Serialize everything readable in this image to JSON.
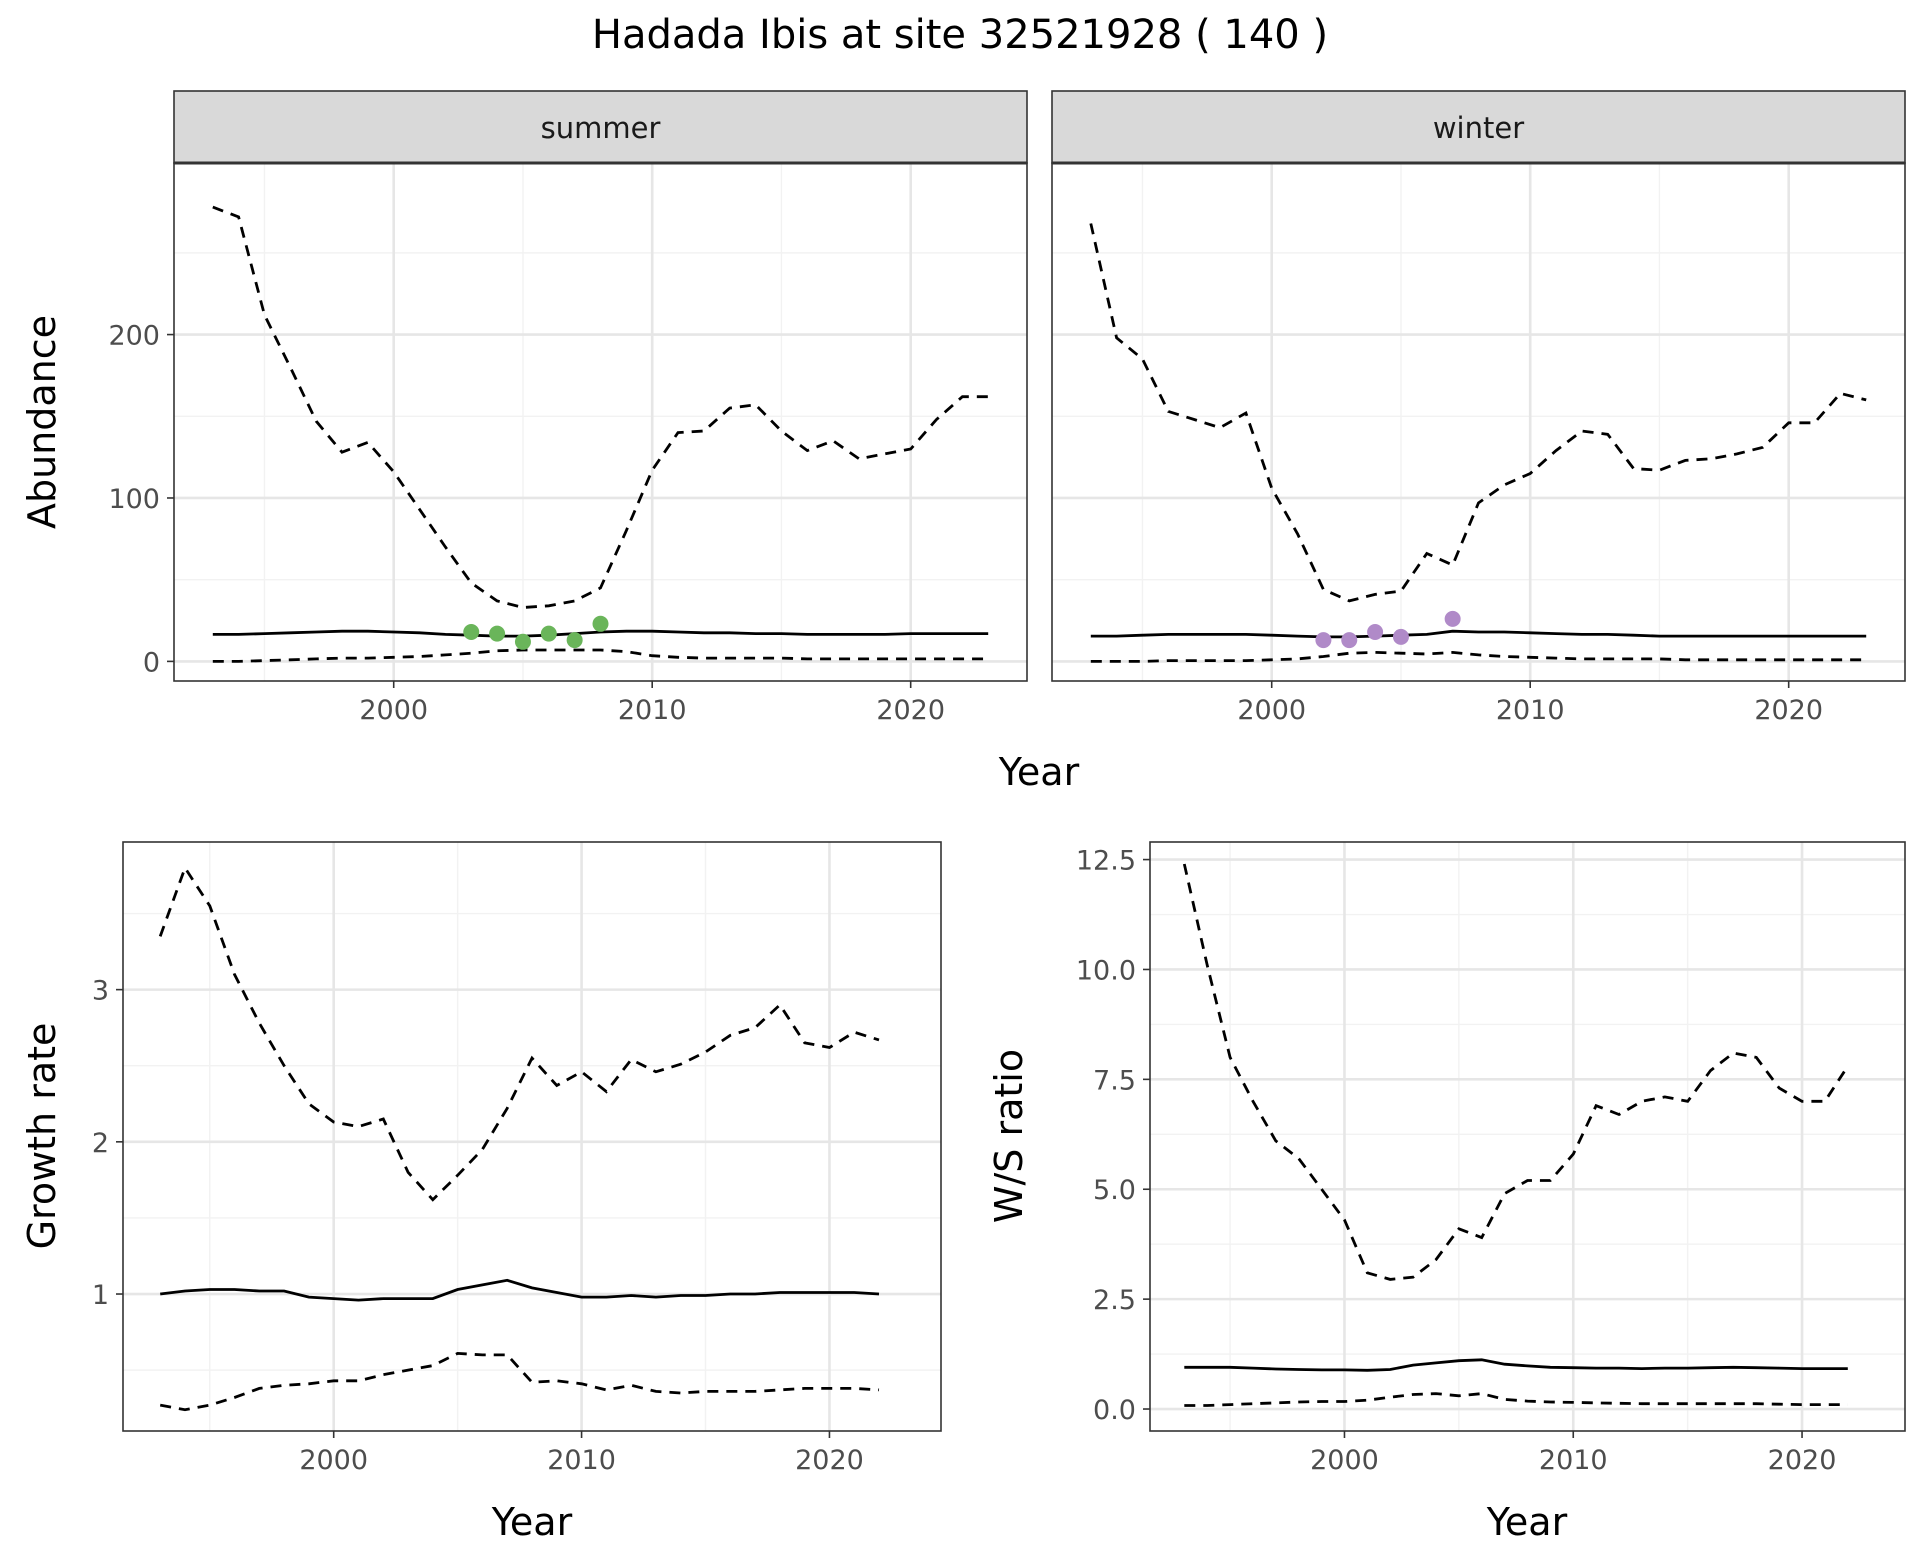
{
  "title": "Hadada Ibis at site 32521928 ( 140 )",
  "colors": {
    "summer_points": "#6ab55a",
    "winter_points": "#b08ac8",
    "line": "#000000",
    "grid_major": "#e6e6e6",
    "grid_minor": "#f2f2f2",
    "strip_fill": "#d9d9d9"
  },
  "chart_data": [
    {
      "id": "abundance",
      "type": "line",
      "ylabel": "Abundance",
      "xlabel": "Year",
      "xlim": [
        1991.5,
        2024.5
      ],
      "ylim": [
        -12,
        305
      ],
      "x_ticks": [
        2000,
        2010,
        2020
      ],
      "y_ticks": [
        0,
        100,
        200
      ],
      "panels": [
        {
          "strip": "summer",
          "x": [
            1993,
            1994,
            1995,
            1996,
            1997,
            1998,
            1999,
            2000,
            2001,
            2002,
            2003,
            2004,
            2005,
            2006,
            2007,
            2008,
            2009,
            2010,
            2011,
            2012,
            2013,
            2014,
            2015,
            2016,
            2017,
            2018,
            2019,
            2020,
            2021,
            2022,
            2023
          ],
          "series": [
            {
              "style": "dashed",
              "values": [
                278,
                272,
                212,
                180,
                147,
                128,
                134,
                116,
                93,
                70,
                48,
                37,
                33,
                34,
                37,
                45,
                80,
                117,
                140,
                141,
                155,
                157,
                141,
                129,
                135,
                124,
                127,
                130,
                148,
                162,
                162
              ]
            },
            {
              "style": "solid",
              "values": [
                16.5,
                16.5,
                17,
                17.5,
                18,
                18.5,
                18.5,
                18,
                17.5,
                16.5,
                16,
                15.5,
                15.5,
                16,
                17,
                18,
                18.5,
                18.5,
                18,
                17.5,
                17.5,
                17,
                17,
                16.5,
                16.5,
                16.5,
                16.5,
                17,
                17,
                17,
                17
              ]
            },
            {
              "style": "dashed",
              "values": [
                0,
                0,
                0.5,
                1,
                1.5,
                2,
                2,
                2.5,
                3,
                4,
                5,
                6.5,
                7,
                7,
                7,
                7,
                6,
                3.5,
                2.5,
                2,
                2,
                2,
                2,
                1.5,
                1.5,
                1.5,
                1.5,
                1.5,
                1.5,
                1.5,
                1.5
              ]
            }
          ],
          "points": {
            "x": [
              2003,
              2004,
              2005,
              2006,
              2007,
              2008
            ],
            "y": [
              18,
              17,
              12,
              17,
              13,
              23
            ]
          }
        },
        {
          "strip": "winter",
          "x": [
            1993,
            1994,
            1995,
            1996,
            1997,
            1998,
            1999,
            2000,
            2001,
            2002,
            2003,
            2004,
            2005,
            2006,
            2007,
            2008,
            2009,
            2010,
            2011,
            2012,
            2013,
            2014,
            2015,
            2016,
            2017,
            2018,
            2019,
            2020,
            2021,
            2022,
            2023
          ],
          "series": [
            {
              "style": "dashed",
              "values": [
                268,
                198,
                185,
                153,
                148,
                143,
                152,
                106,
                78,
                44,
                37,
                41,
                43,
                66,
                59,
                97,
                108,
                115,
                129,
                141,
                139,
                118,
                117,
                123,
                124,
                127,
                131,
                146,
                146,
                164,
                160
              ]
            },
            {
              "style": "solid",
              "values": [
                15.5,
                15.5,
                16,
                16.5,
                16.5,
                16.5,
                16.5,
                16,
                15.5,
                15,
                15,
                15.5,
                16,
                16.5,
                18.5,
                18,
                18,
                17.5,
                17,
                16.5,
                16.5,
                16,
                15.5,
                15.5,
                15.5,
                15.5,
                15.5,
                15.5,
                15.5,
                15.5,
                15.5
              ]
            },
            {
              "style": "dashed",
              "values": [
                0,
                0,
                0,
                0.5,
                0.5,
                0.5,
                0.5,
                1,
                1.5,
                3,
                5,
                5.5,
                5,
                4.5,
                5.5,
                4,
                3,
                2.5,
                2,
                1.5,
                1.5,
                1.5,
                1.5,
                1,
                1,
                1,
                1,
                1,
                1,
                1,
                1
              ]
            }
          ],
          "points": {
            "x": [
              2002,
              2003,
              2004,
              2005,
              2007
            ],
            "y": [
              13,
              13,
              18,
              15,
              26
            ]
          }
        }
      ]
    },
    {
      "id": "growth",
      "type": "line",
      "ylabel": "Growth rate",
      "xlabel": "Year",
      "xlim": [
        1991.5,
        2024.5
      ],
      "ylim": [
        0.1,
        3.97
      ],
      "x_ticks": [
        2000,
        2010,
        2020
      ],
      "y_ticks": [
        1,
        2,
        3
      ],
      "x": [
        1993,
        1994,
        1995,
        1996,
        1997,
        1998,
        1999,
        2000,
        2001,
        2002,
        2003,
        2004,
        2005,
        2006,
        2007,
        2008,
        2009,
        2010,
        2011,
        2012,
        2013,
        2014,
        2015,
        2016,
        2017,
        2018,
        2019,
        2020,
        2021,
        2022
      ],
      "series": [
        {
          "style": "dashed",
          "values": [
            3.35,
            3.8,
            3.55,
            3.1,
            2.78,
            2.5,
            2.25,
            2.13,
            2.1,
            2.15,
            1.8,
            1.62,
            1.78,
            1.95,
            2.22,
            2.55,
            2.37,
            2.46,
            2.33,
            2.54,
            2.46,
            2.51,
            2.59,
            2.7,
            2.75,
            2.9,
            2.65,
            2.62,
            2.72,
            2.67
          ]
        },
        {
          "style": "solid",
          "values": [
            1.0,
            1.02,
            1.03,
            1.03,
            1.02,
            1.02,
            0.98,
            0.97,
            0.96,
            0.97,
            0.97,
            0.97,
            1.03,
            1.06,
            1.09,
            1.04,
            1.01,
            0.98,
            0.98,
            0.99,
            0.98,
            0.99,
            0.99,
            1.0,
            1.0,
            1.01,
            1.01,
            1.01,
            1.01,
            1.0
          ]
        },
        {
          "style": "dashed",
          "values": [
            0.27,
            0.24,
            0.27,
            0.32,
            0.38,
            0.4,
            0.41,
            0.43,
            0.43,
            0.47,
            0.5,
            0.53,
            0.61,
            0.6,
            0.6,
            0.42,
            0.43,
            0.41,
            0.37,
            0.4,
            0.36,
            0.35,
            0.36,
            0.36,
            0.36,
            0.37,
            0.38,
            0.38,
            0.38,
            0.37
          ]
        }
      ]
    },
    {
      "id": "ws_ratio",
      "type": "line",
      "ylabel": "W/S ratio",
      "xlabel": "Year",
      "xlim": [
        1991.5,
        2024.5
      ],
      "ylim": [
        -0.5,
        12.9
      ],
      "x_ticks": [
        2000,
        2010,
        2020
      ],
      "y_ticks": [
        "0.0",
        "2.5",
        "5.0",
        "7.5",
        "10.0",
        "12.5"
      ],
      "x": [
        1993,
        1994,
        1995,
        1996,
        1997,
        1998,
        1999,
        2000,
        2001,
        2002,
        2003,
        2004,
        2005,
        2006,
        2007,
        2008,
        2009,
        2010,
        2011,
        2012,
        2013,
        2014,
        2015,
        2016,
        2017,
        2018,
        2019,
        2020,
        2021,
        2022
      ],
      "series": [
        {
          "style": "dashed",
          "values": [
            12.4,
            10.1,
            8.0,
            7.0,
            6.1,
            5.7,
            5.0,
            4.3,
            3.1,
            2.95,
            3.0,
            3.4,
            4.1,
            3.9,
            4.9,
            5.2,
            5.2,
            5.8,
            6.9,
            6.7,
            7.0,
            7.1,
            7.0,
            7.7,
            8.1,
            8.0,
            7.3,
            7.0,
            7.0,
            7.8
          ]
        },
        {
          "style": "solid",
          "values": [
            0.95,
            0.95,
            0.95,
            0.93,
            0.91,
            0.9,
            0.89,
            0.89,
            0.88,
            0.9,
            1.0,
            1.05,
            1.1,
            1.12,
            1.02,
            0.98,
            0.95,
            0.94,
            0.93,
            0.93,
            0.92,
            0.93,
            0.93,
            0.94,
            0.95,
            0.94,
            0.93,
            0.92,
            0.92,
            0.92
          ]
        },
        {
          "style": "dashed",
          "values": [
            0.08,
            0.08,
            0.1,
            0.12,
            0.14,
            0.16,
            0.17,
            0.17,
            0.2,
            0.27,
            0.33,
            0.35,
            0.3,
            0.35,
            0.22,
            0.18,
            0.16,
            0.15,
            0.14,
            0.13,
            0.12,
            0.12,
            0.12,
            0.12,
            0.12,
            0.12,
            0.11,
            0.1,
            0.1,
            0.1
          ]
        }
      ]
    }
  ]
}
